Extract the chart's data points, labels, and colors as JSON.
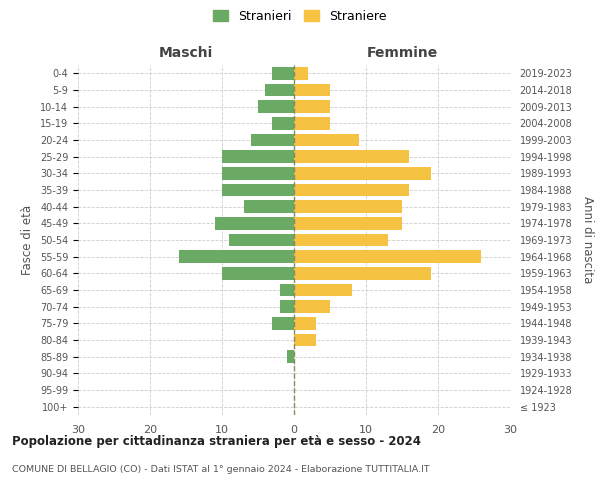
{
  "age_groups": [
    "100+",
    "95-99",
    "90-94",
    "85-89",
    "80-84",
    "75-79",
    "70-74",
    "65-69",
    "60-64",
    "55-59",
    "50-54",
    "45-49",
    "40-44",
    "35-39",
    "30-34",
    "25-29",
    "20-24",
    "15-19",
    "10-14",
    "5-9",
    "0-4"
  ],
  "birth_years": [
    "≤ 1923",
    "1924-1928",
    "1929-1933",
    "1934-1938",
    "1939-1943",
    "1944-1948",
    "1949-1953",
    "1954-1958",
    "1959-1963",
    "1964-1968",
    "1969-1973",
    "1974-1978",
    "1979-1983",
    "1984-1988",
    "1989-1993",
    "1994-1998",
    "1999-2003",
    "2004-2008",
    "2009-2013",
    "2014-2018",
    "2019-2023"
  ],
  "males": [
    0,
    0,
    0,
    1,
    0,
    3,
    2,
    2,
    10,
    16,
    9,
    11,
    7,
    10,
    10,
    10,
    6,
    3,
    5,
    4,
    3
  ],
  "females": [
    0,
    0,
    0,
    0,
    3,
    3,
    5,
    8,
    19,
    26,
    13,
    15,
    15,
    16,
    19,
    16,
    9,
    5,
    5,
    5,
    2
  ],
  "male_color": "#6aaa64",
  "female_color": "#f5c242",
  "title": "Popolazione per cittadinanza straniera per età e sesso - 2024",
  "subtitle": "COMUNE DI BELLAGIO (CO) - Dati ISTAT al 1° gennaio 2024 - Elaborazione TUTTITALIA.IT",
  "xlabel_left": "Maschi",
  "xlabel_right": "Femmine",
  "ylabel_left": "Fasce di età",
  "ylabel_right": "Anni di nascita",
  "xlim": 30,
  "legend_stranieri": "Stranieri",
  "legend_straniere": "Straniere",
  "background_color": "#ffffff",
  "grid_color": "#cccccc"
}
